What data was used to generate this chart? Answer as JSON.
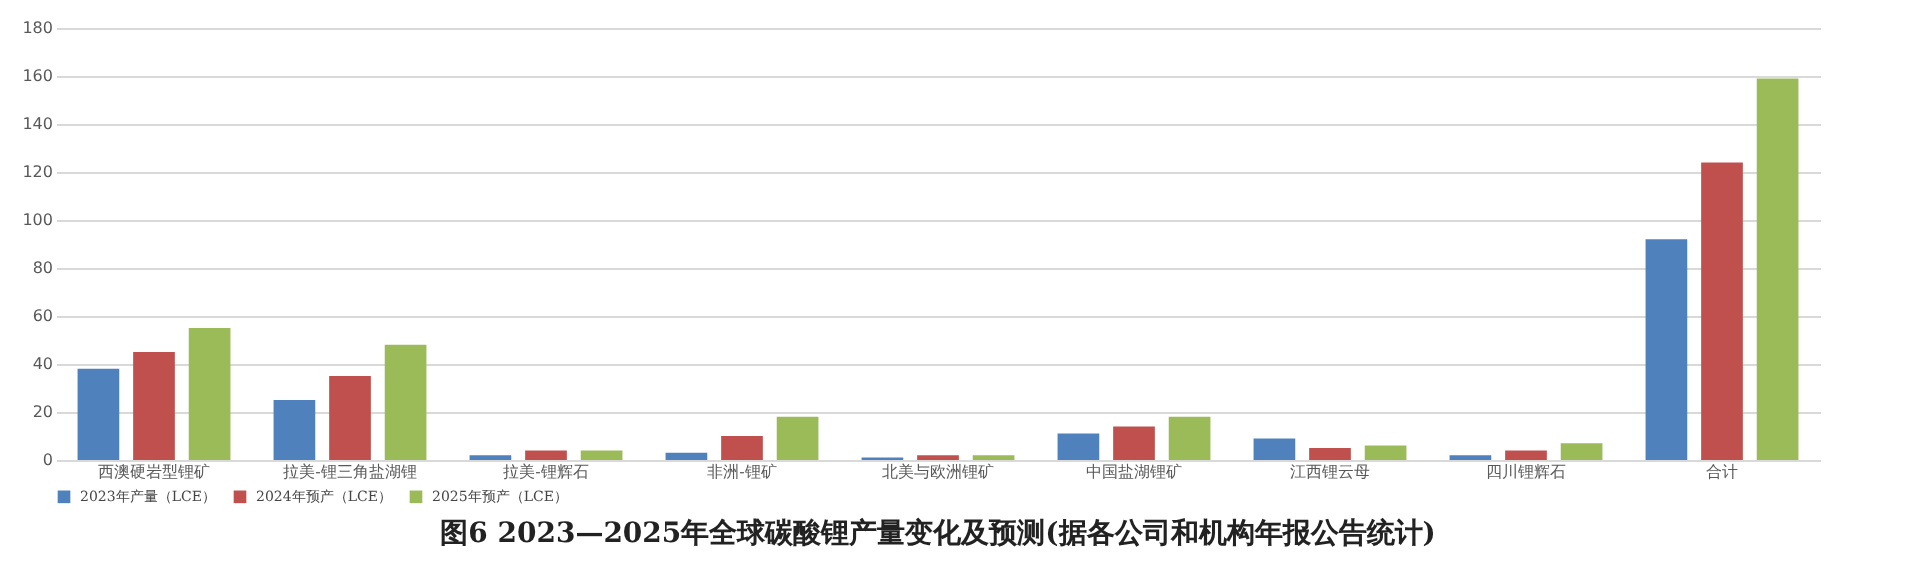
{
  "chart_data": {
    "type": "bar",
    "title": "图6   2023—2025年全球碳酸锂产量变化及预测(据各公司和机构年报公告统计)",
    "categories": [
      "西澳硬岩型锂矿",
      "拉美-锂三角盐湖锂",
      "拉美-锂辉石",
      "非洲-锂矿",
      "北美与欧洲锂矿",
      "中国盐湖锂矿",
      "江西锂云母",
      "四川锂辉石",
      "合计"
    ],
    "series": [
      {
        "name": "2023年产量（LCE）",
        "color": "#4f81bd",
        "values": [
          38,
          25,
          2,
          3,
          1,
          11,
          9,
          2,
          92
        ]
      },
      {
        "name": "2024年预产（LCE）",
        "color": "#c0504d",
        "values": [
          45,
          35,
          4,
          10,
          2,
          14,
          5,
          4,
          124
        ]
      },
      {
        "name": "2025年预产（LCE）",
        "color": "#9bbb59",
        "values": [
          55,
          48,
          4,
          18,
          2,
          18,
          6,
          7,
          159
        ]
      }
    ],
    "ylim": [
      0,
      180
    ],
    "yticks": [
      0,
      20,
      40,
      60,
      80,
      100,
      120,
      140,
      160,
      180
    ],
    "grid": "y",
    "legend": "bottom"
  }
}
